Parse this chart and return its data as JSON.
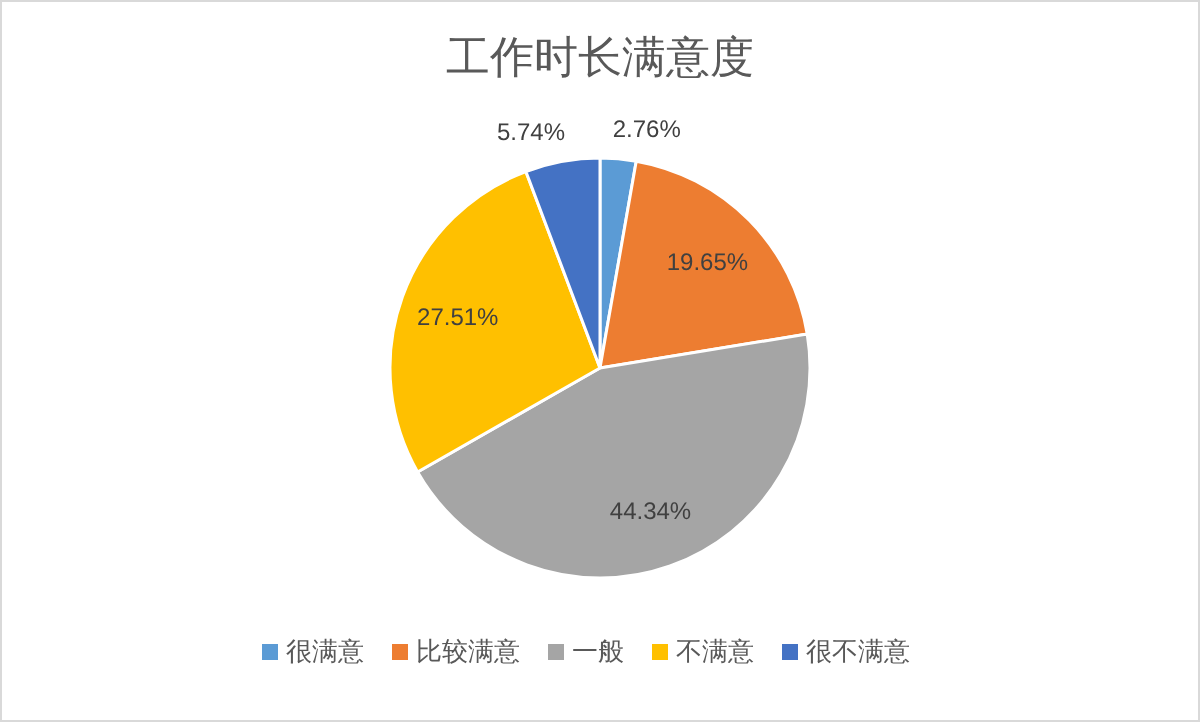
{
  "chart_data": {
    "type": "pie",
    "title": "工作时长满意度",
    "categories": [
      "很满意",
      "比较满意",
      "一般",
      "不满意",
      "很不满意"
    ],
    "values": [
      2.76,
      19.65,
      44.34,
      27.51,
      5.74
    ],
    "value_labels": [
      "2.76%",
      "19.65%",
      "44.34%",
      "27.51%",
      "5.74%"
    ],
    "colors": [
      "#5b9bd5",
      "#ed7d31",
      "#a5a5a5",
      "#ffc000",
      "#4472c4"
    ],
    "legend": "bottom"
  }
}
